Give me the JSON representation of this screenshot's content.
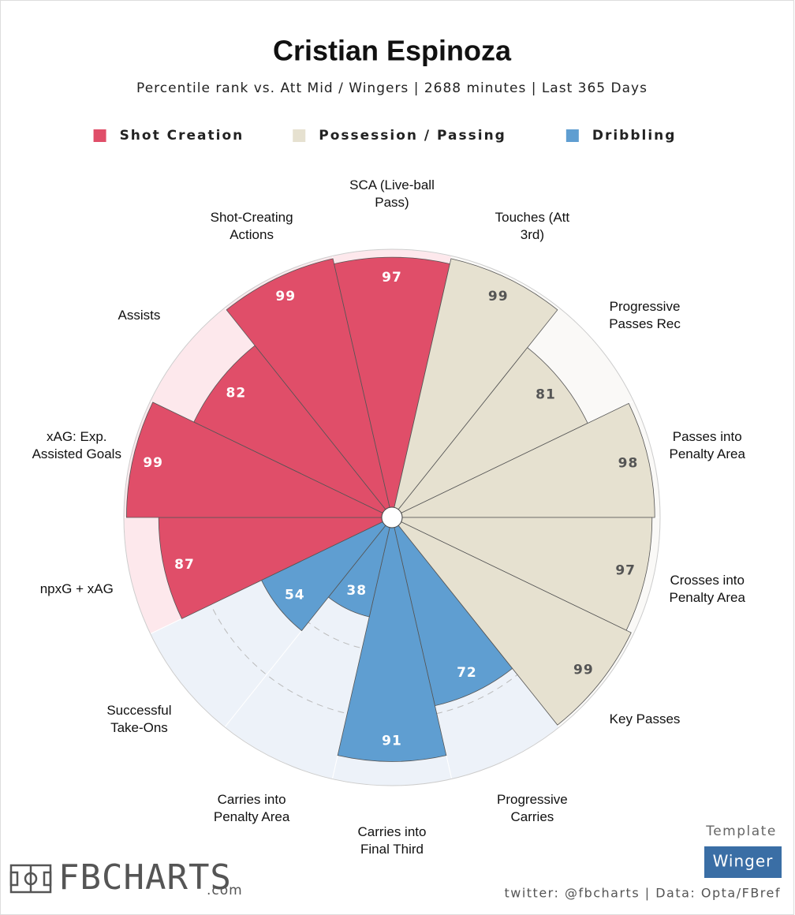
{
  "chart_data": {
    "type": "pizza",
    "title": "Cristian Espinoza",
    "subtitle": "Percentile rank vs. Att Mid / Wingers | 2688 minutes | Last 365 Days",
    "rlim": [
      0,
      100
    ],
    "rticks": [
      25,
      50,
      75
    ],
    "series": [
      {
        "name": "Shot Creation",
        "color": "#e04e69",
        "background": "#fde8ec",
        "text_color": "#ffffff",
        "categories": [
          "npxG + xAG",
          "xAG: Exp. Assisted Goals",
          "Assists",
          "Shot-Creating Actions",
          "SCA (Live-ball Pass)"
        ],
        "values": [
          87,
          99,
          82,
          99,
          97
        ]
      },
      {
        "name": "Possession / Passing",
        "color": "#e6e1d0",
        "background": "#faf9f7",
        "text_color": "#555555",
        "categories": [
          "Touches (Att 3rd)",
          "Progressive Passes Rec",
          "Passes into Penalty Area",
          "Crosses into Penalty Area",
          "Key Passes"
        ],
        "values": [
          99,
          81,
          98,
          97,
          99
        ]
      },
      {
        "name": "Dribbling",
        "color": "#5f9ed1",
        "background": "#edf2f9",
        "text_color": "#ffffff",
        "categories": [
          "Progressive Carries",
          "Carries into Final Third",
          "Carries into Penalty Area",
          "Successful Take-Ons"
        ],
        "values": [
          72,
          91,
          38,
          54
        ]
      }
    ]
  },
  "footer": {
    "template_label": "Template",
    "template": "Winger",
    "credit": "twitter: @fbcharts | Data: Opta/FBref",
    "logo": "FBCHARTS",
    "logo_suffix": ".com"
  }
}
